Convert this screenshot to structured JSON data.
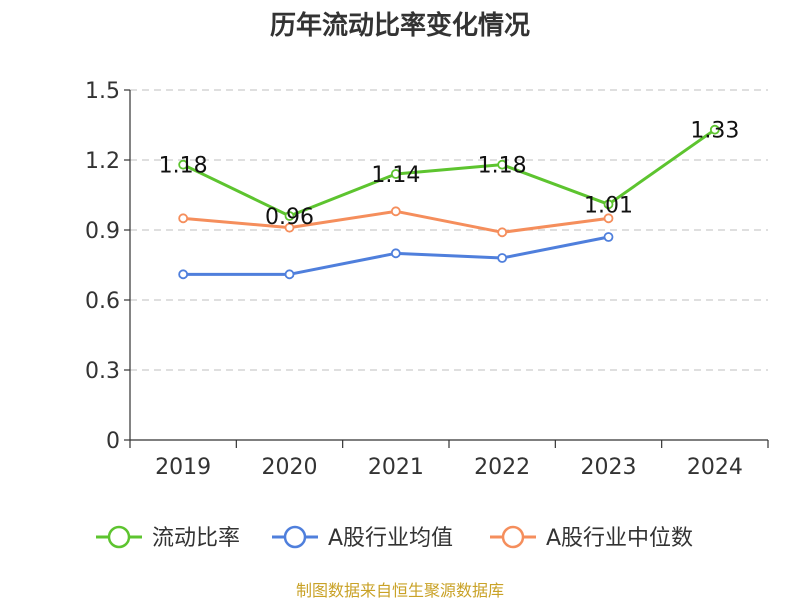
{
  "title": "历年流动比率变化情况",
  "source": "制图数据来自恒生聚源数据库",
  "chart_data": {
    "type": "line",
    "title": "历年流动比率变化情况",
    "categories": [
      "2019",
      "2020",
      "2021",
      "2022",
      "2023",
      "2024"
    ],
    "ylim": [
      0,
      1.5
    ],
    "yticks": [
      "0",
      "0.3",
      "0.6",
      "0.9",
      "1.2",
      "1.5"
    ],
    "grid": true,
    "legend_position": "bottom",
    "series": [
      {
        "name": "流动比率",
        "color": "#5dc42f",
        "values": [
          1.18,
          0.96,
          1.14,
          1.18,
          1.01,
          1.33
        ],
        "labels": [
          "1.18",
          "0.96",
          "1.14",
          "1.18",
          "1.01",
          "1.33"
        ]
      },
      {
        "name": "A股行业均值",
        "color": "#4f7fdc",
        "values": [
          0.71,
          0.71,
          0.8,
          0.78,
          0.87,
          null
        ]
      },
      {
        "name": "A股行业中位数",
        "color": "#f58e5c",
        "values": [
          0.95,
          0.91,
          0.98,
          0.89,
          0.95,
          null
        ]
      }
    ]
  }
}
